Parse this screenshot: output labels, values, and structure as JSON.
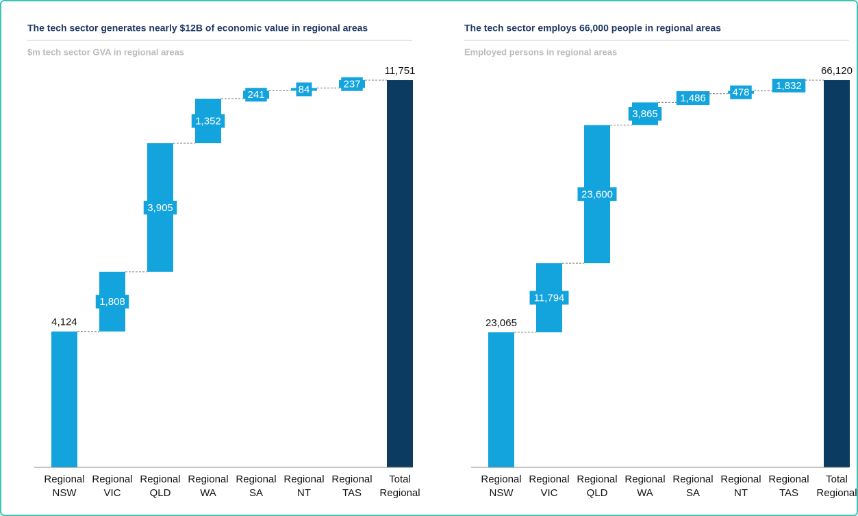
{
  "chart_data": [
    {
      "type": "waterfall",
      "title": "The tech sector generates nearly $12B of economic value in regional areas",
      "subtitle": "$m tech sector GVA in regional areas",
      "categories": [
        "Regional NSW",
        "Regional VIC",
        "Regional QLD",
        "Regional WA",
        "Regional SA",
        "Regional NT",
        "Regional TAS",
        "Total Regional"
      ],
      "values": [
        4124,
        1808,
        3905,
        1352,
        241,
        84,
        237,
        11751
      ],
      "value_labels": [
        "4,124",
        "1,808",
        "3,905",
        "1,352",
        "241",
        "84",
        "237",
        "11,751"
      ],
      "color": "#13a3dd",
      "total_color": "#0b3b60"
    },
    {
      "type": "waterfall",
      "title": "The tech sector employs 66,000 people in regional areas",
      "subtitle": "Employed persons in regional areas",
      "categories": [
        "Regional NSW",
        "Regional VIC",
        "Regional QLD",
        "Regional WA",
        "Regional SA",
        "Regional NT",
        "Regional TAS",
        "Total Regional"
      ],
      "values": [
        23065,
        11794,
        23600,
        3865,
        1486,
        478,
        1832,
        66120
      ],
      "value_labels": [
        "23,065",
        "11,794",
        "23,600",
        "3,865",
        "1,486",
        "478",
        "1,832",
        "66,120"
      ],
      "color": "#13a3dd",
      "total_color": "#0b3b60"
    }
  ]
}
